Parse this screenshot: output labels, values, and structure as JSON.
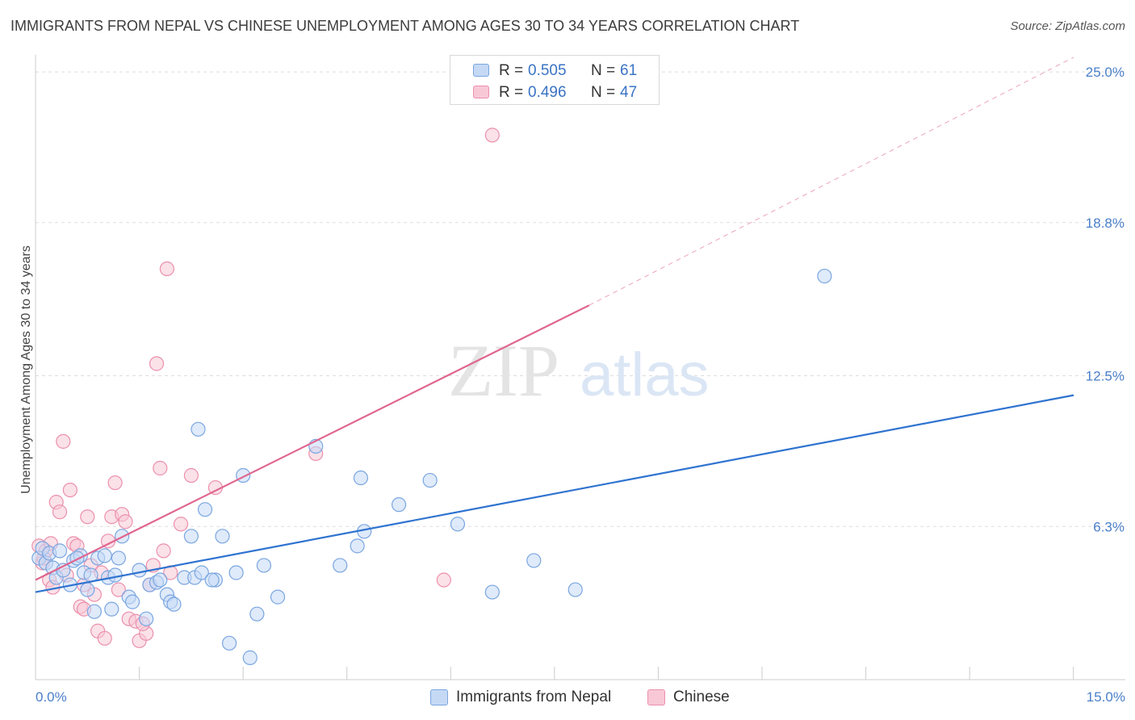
{
  "title": "IMMIGRANTS FROM NEPAL VS CHINESE UNEMPLOYMENT AMONG AGES 30 TO 34 YEARS CORRELATION CHART",
  "source": "Source: ZipAtlas.com",
  "watermark": {
    "zip": "ZIP",
    "atlas": "atlas"
  },
  "stats": {
    "r_label": "R =",
    "n_label": "N =",
    "rows": [
      {
        "series": "Immigrants from Nepal",
        "r": "0.505",
        "n": "61"
      },
      {
        "series": "Chinese",
        "r": "0.496",
        "n": "47"
      }
    ]
  },
  "colors": {
    "nepal_fill": "#c5d9f5",
    "nepal_stroke": "#7aa6e0",
    "nepal_line": "#2f73d0",
    "chinese_fill": "#f8c8d6",
    "chinese_stroke": "#eb90ad",
    "chinese_line": "#e06690",
    "grid": "#dddddd",
    "tick_text": "#4a7fc9"
  },
  "chart_data": {
    "type": "scatter",
    "title": "IMMIGRANTS FROM NEPAL VS CHINESE UNEMPLOYMENT AMONG AGES 30 TO 34 YEARS CORRELATION CHART",
    "xlabel": "",
    "ylabel": "Unemployment Among Ages 30 to 34 years",
    "xlim": [
      0,
      15
    ],
    "ylim": [
      0,
      25.7
    ],
    "x_tick_labels": [
      "0.0%",
      "15.0%"
    ],
    "y_ticks": [
      {
        "value": 6.3,
        "label": "6.3%"
      },
      {
        "value": 12.5,
        "label": "12.5%"
      },
      {
        "value": 18.8,
        "label": "18.8%"
      },
      {
        "value": 25.0,
        "label": "25.0%"
      }
    ],
    "grid": true,
    "legend": "bottom-center",
    "series": [
      {
        "name": "Immigrants from Nepal",
        "trend": {
          "x": [
            0,
            15
          ],
          "y": [
            3.6,
            11.7
          ],
          "dashed_to": null
        },
        "points": [
          [
            0.05,
            5.0
          ],
          [
            0.1,
            5.4
          ],
          [
            0.15,
            4.8
          ],
          [
            0.2,
            5.2
          ],
          [
            0.25,
            4.6
          ],
          [
            0.3,
            4.2
          ],
          [
            0.35,
            5.3
          ],
          [
            0.4,
            4.5
          ],
          [
            0.5,
            3.9
          ],
          [
            0.55,
            4.9
          ],
          [
            0.65,
            5.1
          ],
          [
            0.7,
            4.4
          ],
          [
            0.75,
            3.7
          ],
          [
            0.8,
            4.3
          ],
          [
            0.85,
            2.8
          ],
          [
            0.9,
            5.0
          ],
          [
            1.0,
            5.1
          ],
          [
            1.05,
            4.2
          ],
          [
            1.1,
            2.9
          ],
          [
            1.2,
            5.0
          ],
          [
            1.25,
            5.9
          ],
          [
            1.35,
            3.4
          ],
          [
            1.4,
            3.2
          ],
          [
            1.5,
            4.5
          ],
          [
            1.6,
            2.5
          ],
          [
            1.65,
            3.9
          ],
          [
            1.75,
            4.0
          ],
          [
            1.8,
            4.1
          ],
          [
            1.9,
            3.5
          ],
          [
            1.95,
            3.2
          ],
          [
            2.0,
            3.1
          ],
          [
            2.15,
            4.2
          ],
          [
            2.25,
            5.9
          ],
          [
            2.3,
            4.2
          ],
          [
            2.35,
            10.3
          ],
          [
            2.4,
            4.4
          ],
          [
            2.45,
            7.0
          ],
          [
            2.6,
            4.1
          ],
          [
            2.7,
            5.9
          ],
          [
            2.8,
            1.5
          ],
          [
            2.9,
            4.4
          ],
          [
            3.1,
            0.9
          ],
          [
            3.0,
            8.4
          ],
          [
            3.2,
            2.7
          ],
          [
            3.3,
            4.7
          ],
          [
            3.5,
            3.4
          ],
          [
            4.05,
            9.6
          ],
          [
            4.4,
            4.7
          ],
          [
            4.65,
            5.5
          ],
          [
            4.7,
            8.3
          ],
          [
            4.75,
            6.1
          ],
          [
            5.25,
            7.2
          ],
          [
            5.7,
            8.2
          ],
          [
            6.1,
            6.4
          ],
          [
            6.6,
            3.6
          ],
          [
            7.2,
            4.9
          ],
          [
            7.8,
            3.7
          ],
          [
            11.4,
            16.6
          ],
          [
            0.6,
            5.0
          ],
          [
            1.15,
            4.3
          ],
          [
            2.55,
            4.1
          ]
        ]
      },
      {
        "name": "Chinese",
        "trend": {
          "x": [
            0,
            8
          ],
          "y": [
            4.1,
            15.4
          ],
          "dashed_to": [
            15,
            25.6
          ]
        },
        "points": [
          [
            0.05,
            5.5
          ],
          [
            0.1,
            4.8
          ],
          [
            0.15,
            5.3
          ],
          [
            0.2,
            4.1
          ],
          [
            0.25,
            3.8
          ],
          [
            0.3,
            7.3
          ],
          [
            0.35,
            6.9
          ],
          [
            0.4,
            9.8
          ],
          [
            0.45,
            4.3
          ],
          [
            0.5,
            7.8
          ],
          [
            0.55,
            5.6
          ],
          [
            0.6,
            5.5
          ],
          [
            0.65,
            3.0
          ],
          [
            0.7,
            2.9
          ],
          [
            0.75,
            6.7
          ],
          [
            0.8,
            4.7
          ],
          [
            0.85,
            3.5
          ],
          [
            0.9,
            2.0
          ],
          [
            0.95,
            4.4
          ],
          [
            1.0,
            1.7
          ],
          [
            1.05,
            5.7
          ],
          [
            1.1,
            6.7
          ],
          [
            1.15,
            8.1
          ],
          [
            1.2,
            3.7
          ],
          [
            1.25,
            6.8
          ],
          [
            1.3,
            6.5
          ],
          [
            1.35,
            2.5
          ],
          [
            1.45,
            2.4
          ],
          [
            1.5,
            1.6
          ],
          [
            1.6,
            1.9
          ],
          [
            1.65,
            3.9
          ],
          [
            1.7,
            4.7
          ],
          [
            1.75,
            13.0
          ],
          [
            1.8,
            8.7
          ],
          [
            1.85,
            5.3
          ],
          [
            1.9,
            16.9
          ],
          [
            1.95,
            4.4
          ],
          [
            2.1,
            6.4
          ],
          [
            2.25,
            8.4
          ],
          [
            2.6,
            7.9
          ],
          [
            4.05,
            9.3
          ],
          [
            5.9,
            4.1
          ],
          [
            6.6,
            22.4
          ],
          [
            0.12,
            5.0
          ],
          [
            0.22,
            5.6
          ],
          [
            1.55,
            2.3
          ],
          [
            0.7,
            3.9
          ]
        ]
      }
    ]
  }
}
